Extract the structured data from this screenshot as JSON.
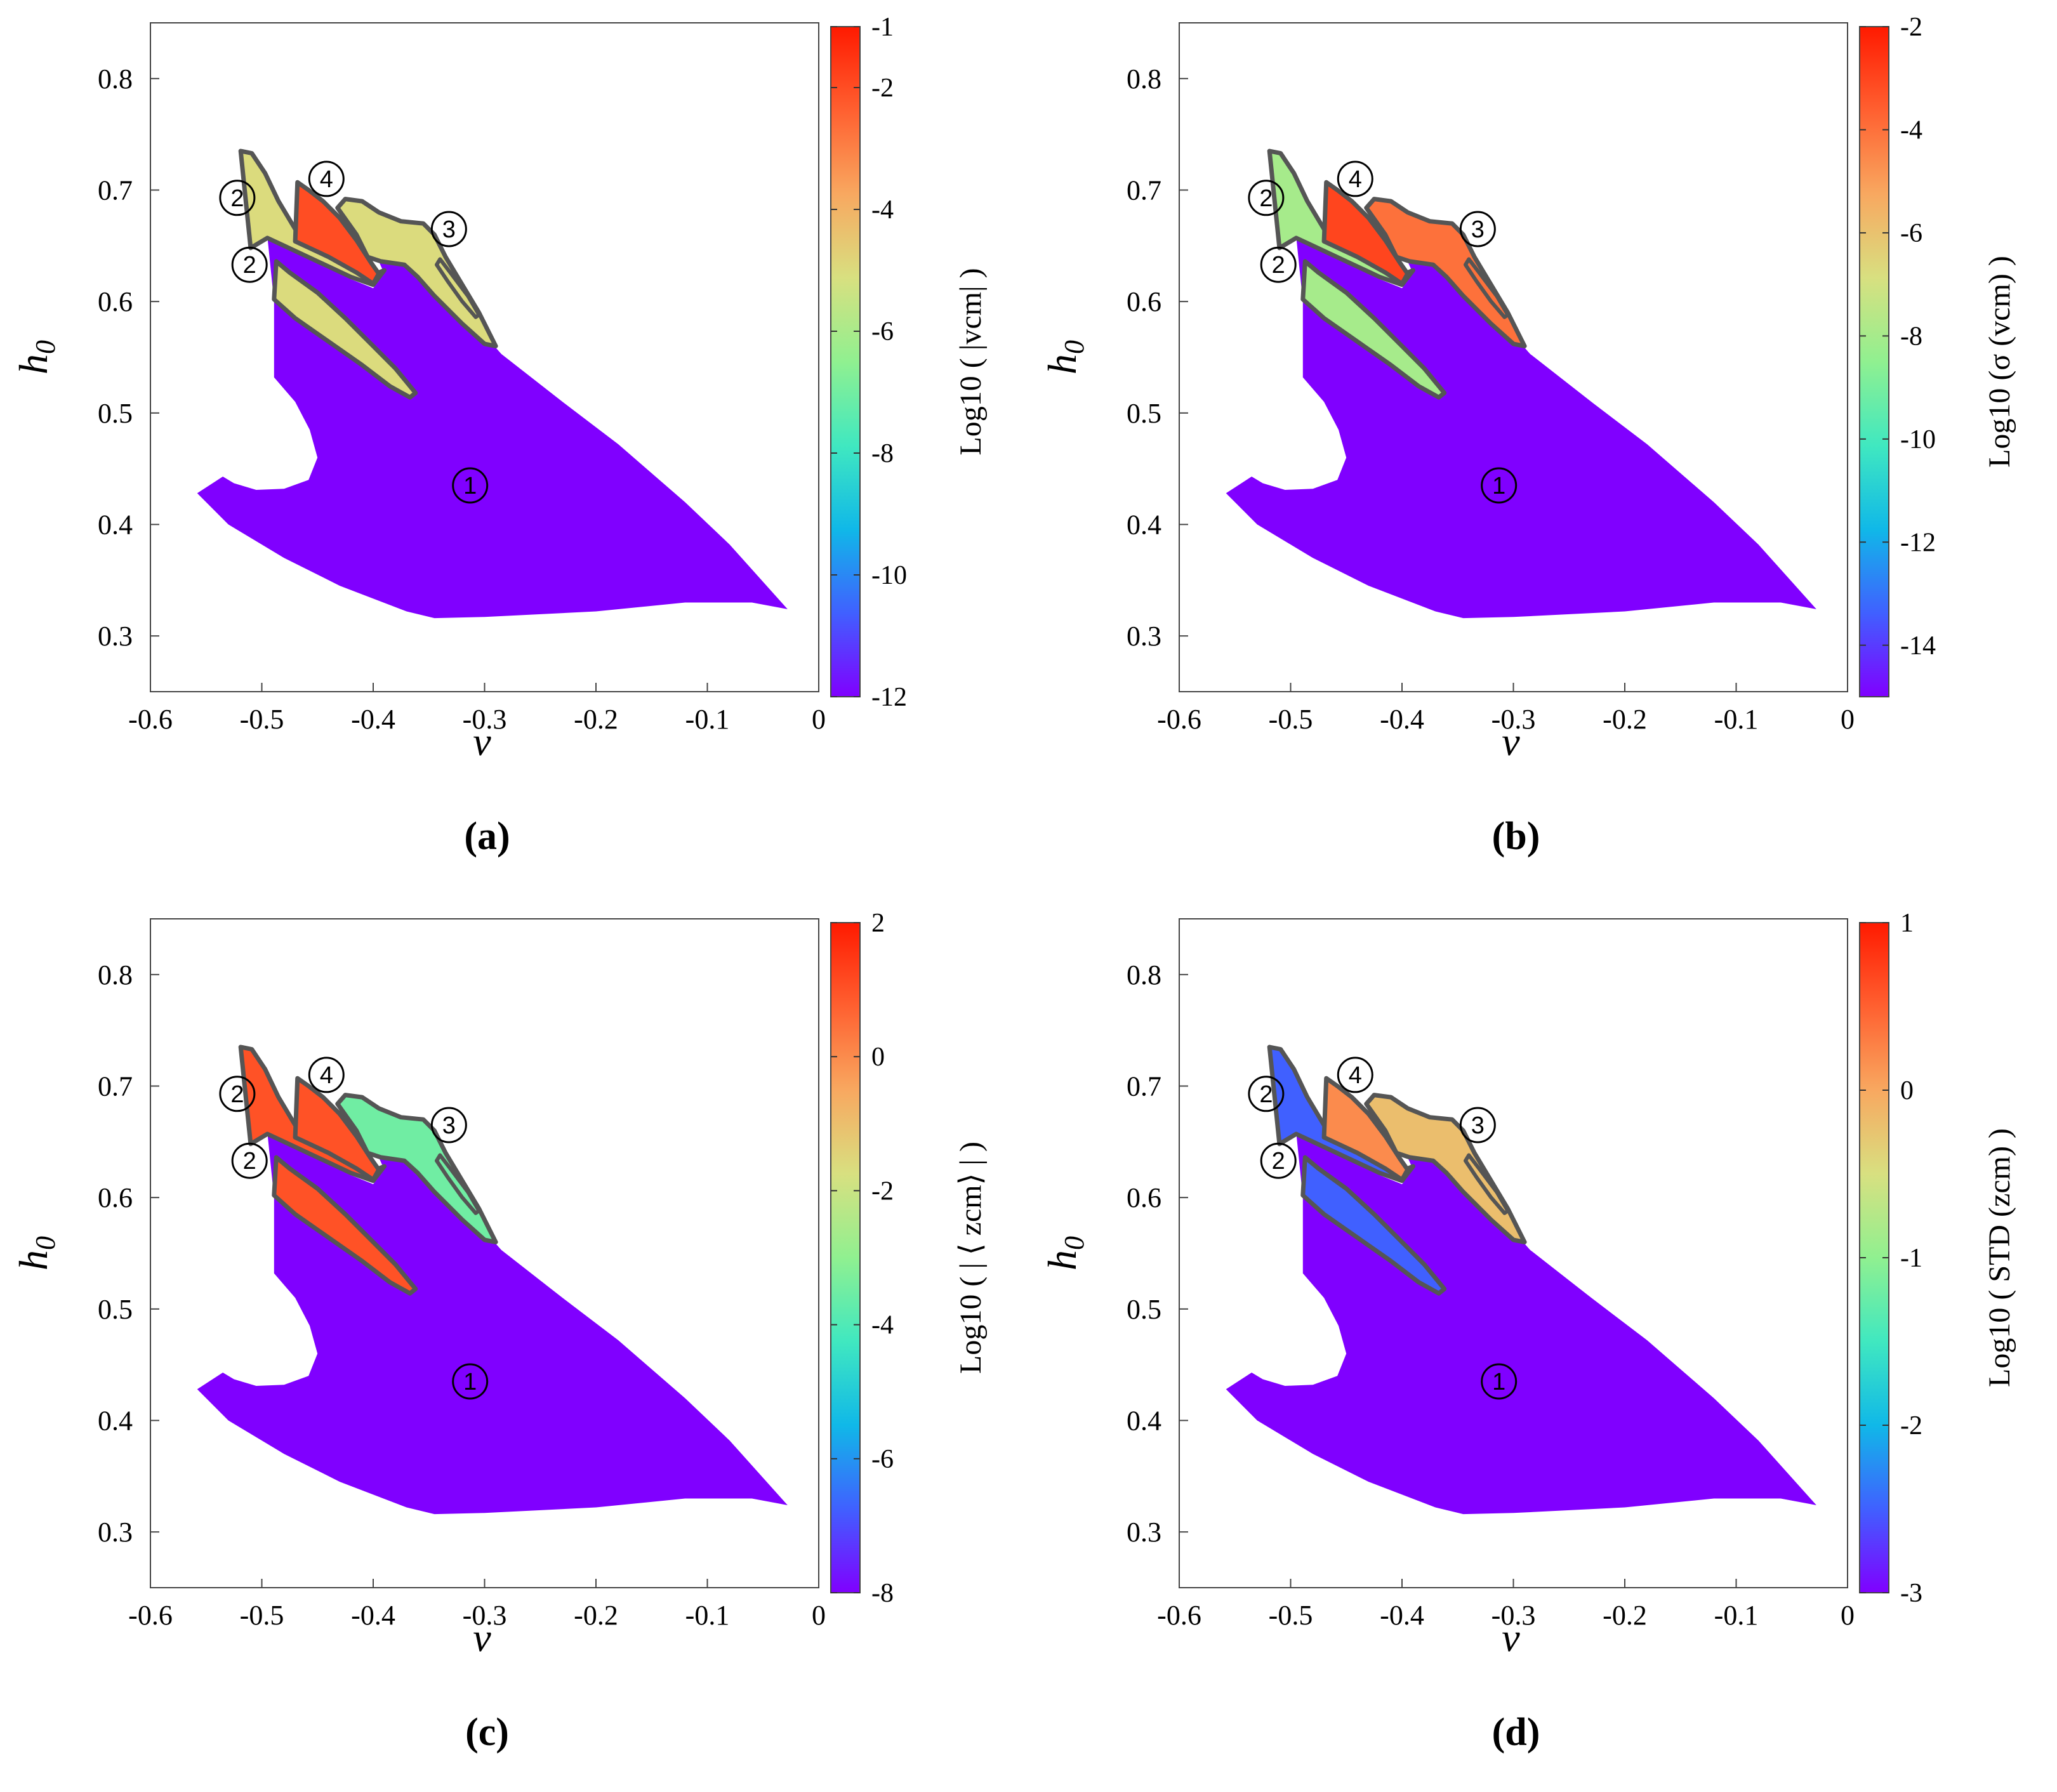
{
  "colors": {
    "background_region": "#7f00ff",
    "outline": "#555555",
    "colormap": [
      "#8000ff",
      "#4060ff",
      "#10b8e8",
      "#40e8c0",
      "#90f090",
      "#d8e080",
      "#f8a860",
      "#ff6030",
      "#ff1a00"
    ]
  },
  "chart_data": [
    {
      "type": "heatmap",
      "caption": "(a)",
      "xlabel": "v",
      "ylabel": "h0",
      "xlim": [
        -0.6,
        0
      ],
      "ylim": [
        0.25,
        0.85
      ],
      "xticks": [
        "-0.6",
        "-0.5",
        "-0.4",
        "-0.3",
        "-0.2",
        "-0.1",
        "0"
      ],
      "yticks": [
        "0.3",
        "0.4",
        "0.5",
        "0.6",
        "0.7",
        "0.8"
      ],
      "colorbar": {
        "label": "Log10 ( |vcm| )",
        "range": [
          -12,
          -1
        ],
        "ticks": [
          "-1",
          "-2",
          "-4",
          "-6",
          "-8",
          "-10",
          "-12"
        ]
      },
      "regions": [
        {
          "label": "1",
          "fill_value": -12
        },
        {
          "label": "2",
          "fill_value": -5
        },
        {
          "label": "3",
          "fill_value": -5
        },
        {
          "label": "4",
          "fill_value": -2
        }
      ]
    },
    {
      "type": "heatmap",
      "caption": "(b)",
      "xlabel": "v",
      "ylabel": "h0",
      "xlim": [
        -0.6,
        0
      ],
      "ylim": [
        0.25,
        0.85
      ],
      "xticks": [
        "-0.6",
        "-0.5",
        "-0.4",
        "-0.3",
        "-0.2",
        "-0.1",
        "0"
      ],
      "yticks": [
        "0.3",
        "0.4",
        "0.5",
        "0.6",
        "0.7",
        "0.8"
      ],
      "colorbar": {
        "label": "Log10 (σ (vcm) )",
        "range": [
          -15,
          -2
        ],
        "ticks": [
          "-2",
          "-4",
          "-6",
          "-8",
          "-10",
          "-12",
          "-14"
        ]
      },
      "regions": [
        {
          "label": "1",
          "fill_value": -15
        },
        {
          "label": "2",
          "fill_value": -8
        },
        {
          "label": "3",
          "fill_value": -4
        },
        {
          "label": "4",
          "fill_value": -3
        }
      ]
    },
    {
      "type": "heatmap",
      "caption": "(c)",
      "xlabel": "v",
      "ylabel": "h0",
      "xlim": [
        -0.6,
        0
      ],
      "ylim": [
        0.25,
        0.85
      ],
      "xticks": [
        "-0.6",
        "-0.5",
        "-0.4",
        "-0.3",
        "-0.2",
        "-0.1",
        "0"
      ],
      "yticks": [
        "0.3",
        "0.4",
        "0.5",
        "0.6",
        "0.7",
        "0.8"
      ],
      "colorbar": {
        "label": "Log10 ( | ⟨ zcm⟩ | )",
        "range": [
          -8,
          2
        ],
        "ticks": [
          "2",
          "0",
          "-2",
          "-4",
          "-6",
          "-8"
        ]
      },
      "regions": [
        {
          "label": "1",
          "fill_value": -8
        },
        {
          "label": "2",
          "fill_value": 1
        },
        {
          "label": "3",
          "fill_value": -3.5
        },
        {
          "label": "4",
          "fill_value": 1
        }
      ]
    },
    {
      "type": "heatmap",
      "caption": "(d)",
      "xlabel": "v",
      "ylabel": "h0",
      "xlim": [
        -0.6,
        0
      ],
      "ylim": [
        0.25,
        0.85
      ],
      "xticks": [
        "-0.6",
        "-0.5",
        "-0.4",
        "-0.3",
        "-0.2",
        "-0.1",
        "0"
      ],
      "yticks": [
        "0.3",
        "0.4",
        "0.5",
        "0.6",
        "0.7",
        "0.8"
      ],
      "colorbar": {
        "label": "Log10 ( STD (zcm) )",
        "range": [
          -3,
          1
        ],
        "ticks": [
          "1",
          "0",
          "-1",
          "-2",
          "-3"
        ]
      },
      "regions": [
        {
          "label": "1",
          "fill_value": -3
        },
        {
          "label": "2",
          "fill_value": -2.5
        },
        {
          "label": "3",
          "fill_value": -0.2
        },
        {
          "label": "4",
          "fill_value": 0.2
        }
      ]
    }
  ]
}
